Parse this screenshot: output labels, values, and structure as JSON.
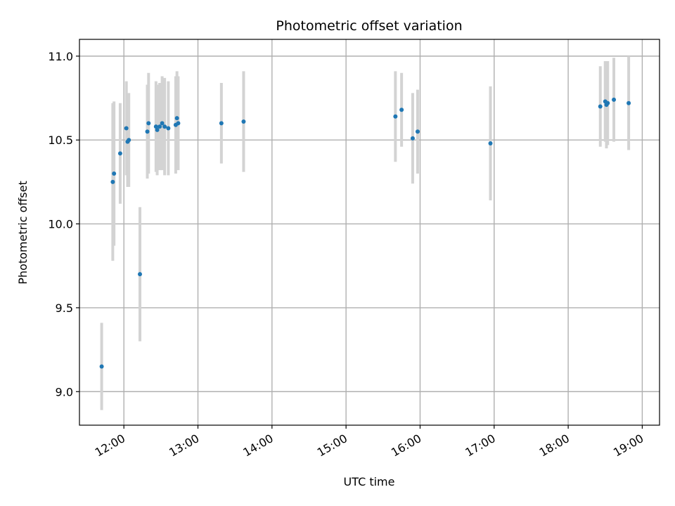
{
  "chart_data": {
    "type": "scatter",
    "title": "Photometric offset variation",
    "xlabel": "UTC time",
    "ylabel": "Photometric offset",
    "x_unit": "hours UTC",
    "xlim": [
      "11:24",
      "19:14"
    ],
    "ylim": [
      8.8,
      11.1
    ],
    "x_ticks": [
      "12:00",
      "13:00",
      "14:00",
      "15:00",
      "16:00",
      "17:00",
      "18:00",
      "19:00"
    ],
    "y_ticks": [
      "9.0",
      "9.5",
      "10.0",
      "10.5",
      "11.0"
    ],
    "grid": true,
    "colors": {
      "points": "#1f77b4",
      "errorbars": "#d3d3d3",
      "grid": "#b0b0b0"
    },
    "series": [
      {
        "points": [
          {
            "x": "11:42",
            "y": 9.15,
            "err": 0.26
          },
          {
            "x": "11:51",
            "y": 10.25,
            "err": 0.47
          },
          {
            "x": "11:52",
            "y": 10.3,
            "err": 0.43
          },
          {
            "x": "11:57",
            "y": 10.42,
            "err": 0.3
          },
          {
            "x": "12:02",
            "y": 10.57,
            "err": 0.28
          },
          {
            "x": "12:03",
            "y": 10.49,
            "err": 0.27
          },
          {
            "x": "12:04",
            "y": 10.5,
            "err": 0.28
          },
          {
            "x": "12:13",
            "y": 9.7,
            "err": 0.4
          },
          {
            "x": "12:19",
            "y": 10.55,
            "err": 0.28
          },
          {
            "x": "12:20",
            "y": 10.6,
            "err": 0.3
          },
          {
            "x": "12:26",
            "y": 10.58,
            "err": 0.27
          },
          {
            "x": "12:27",
            "y": 10.56,
            "err": 0.27
          },
          {
            "x": "12:29",
            "y": 10.58,
            "err": 0.26
          },
          {
            "x": "12:31",
            "y": 10.6,
            "err": 0.28
          },
          {
            "x": "12:33",
            "y": 10.58,
            "err": 0.29
          },
          {
            "x": "12:36",
            "y": 10.57,
            "err": 0.28
          },
          {
            "x": "12:42",
            "y": 10.59,
            "err": 0.29
          },
          {
            "x": "12:43",
            "y": 10.63,
            "err": 0.28
          },
          {
            "x": "12:44",
            "y": 10.6,
            "err": 0.28
          },
          {
            "x": "13:19",
            "y": 10.6,
            "err": 0.24
          },
          {
            "x": "13:37",
            "y": 10.61,
            "err": 0.3
          },
          {
            "x": "15:40",
            "y": 10.64,
            "err": 0.27
          },
          {
            "x": "15:45",
            "y": 10.68,
            "err": 0.22
          },
          {
            "x": "15:54",
            "y": 10.51,
            "err": 0.27
          },
          {
            "x": "15:58",
            "y": 10.55,
            "err": 0.25
          },
          {
            "x": "16:57",
            "y": 10.48,
            "err": 0.34
          },
          {
            "x": "18:26",
            "y": 10.7,
            "err": 0.24
          },
          {
            "x": "18:30",
            "y": 10.73,
            "err": 0.24
          },
          {
            "x": "18:31",
            "y": 10.71,
            "err": 0.26
          },
          {
            "x": "18:32",
            "y": 10.72,
            "err": 0.25
          },
          {
            "x": "18:37",
            "y": 10.74,
            "err": 0.25
          },
          {
            "x": "18:49",
            "y": 10.72,
            "err": 0.28
          }
        ]
      }
    ]
  }
}
